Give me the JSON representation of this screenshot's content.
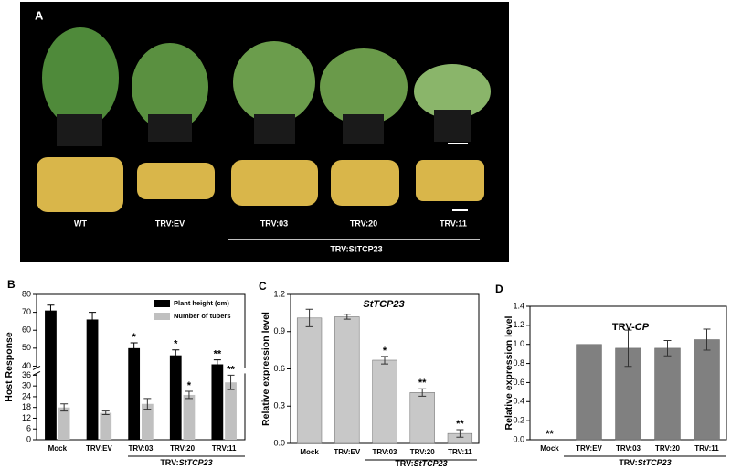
{
  "panel_a": {
    "label": "A",
    "groups": [
      "WT",
      "TRV:EV",
      "TRV:03",
      "TRV:20",
      "TRV:11"
    ],
    "bracket_label": "TRV:StTCP23"
  },
  "chart_data": [
    {
      "type": "bar",
      "panel": "B",
      "y_label": "Host Response",
      "categories": [
        "Mock",
        "TRV:EV",
        "TRV:03",
        "TRV:20",
        "TRV:11"
      ],
      "group_label": [
        "TRV:",
        "StTCP23"
      ],
      "series": [
        {
          "name": "Plant height (cm)",
          "color": "#000000",
          "values": [
            71,
            66,
            50,
            46,
            41
          ],
          "errors": [
            3,
            4,
            3,
            3,
            2.5
          ],
          "significance": [
            null,
            null,
            "*",
            "*",
            "**"
          ]
        },
        {
          "name": "Number of tubers",
          "color": "#c0c0c0",
          "values": [
            18,
            15,
            20,
            25,
            32
          ],
          "errors": [
            2,
            1,
            3,
            2,
            4
          ],
          "significance": [
            null,
            null,
            null,
            "*",
            "**"
          ]
        }
      ],
      "ylim": [
        0,
        80
      ],
      "axis_break": [
        37,
        39
      ],
      "yticks": [
        0,
        6,
        12,
        18,
        24,
        30,
        36,
        40,
        50,
        60,
        70,
        80
      ],
      "legend": "top-right"
    },
    {
      "type": "bar",
      "panel": "C",
      "title": "StTCP23",
      "y_label": "Relative expression level",
      "categories": [
        "Mock",
        "TRV:EV",
        "TRV:03",
        "TRV:20",
        "TRV:11"
      ],
      "group_label": [
        "TRV:",
        "StTCP23"
      ],
      "series": [
        {
          "color": "#c8c8c8",
          "values": [
            1.01,
            1.02,
            0.67,
            0.41,
            0.08
          ],
          "errors": [
            0.07,
            0.02,
            0.03,
            0.03,
            0.03
          ],
          "significance": [
            null,
            null,
            "*",
            "**",
            "**"
          ]
        }
      ],
      "ylim": [
        0,
        1.2
      ],
      "yticks": [
        {
          "value": 0,
          "label": "0.0"
        },
        {
          "value": 0.3,
          "label": "0.3"
        },
        {
          "value": 0.6,
          "label": "0.6"
        },
        {
          "value": 0.9,
          "label": "0.9"
        },
        {
          "value": 1.2,
          "label": "1.2"
        }
      ]
    },
    {
      "type": "bar",
      "panel": "D",
      "title": [
        "TRV-",
        "CP"
      ],
      "y_label": "Relative expression level",
      "categories": [
        "Mock",
        "TRV:EV",
        "TRV:03",
        "TRV:20",
        "TRV:11"
      ],
      "group_label": [
        "TRV:",
        "StTCP23"
      ],
      "series": [
        {
          "color": "#808080",
          "values": [
            0,
            1,
            0.96,
            0.96,
            1.05
          ],
          "errors": [
            null,
            null,
            0.19,
            0.08,
            0.11
          ],
          "significance": [
            "**",
            null,
            null,
            null,
            null
          ]
        }
      ],
      "ylim": [
        0,
        1.4
      ],
      "yticks": [
        {
          "value": 0,
          "label": "0.0"
        },
        {
          "value": 0.2,
          "label": "0.2"
        },
        {
          "value": 0.4,
          "label": "0.4"
        },
        {
          "value": 0.6,
          "label": "0.6"
        },
        {
          "value": 0.8,
          "label": "0.8"
        },
        {
          "value": 1,
          "label": "1.0"
        },
        {
          "value": 1.2,
          "label": "1.2"
        },
        {
          "value": 1.4,
          "label": "1.4"
        }
      ]
    }
  ]
}
